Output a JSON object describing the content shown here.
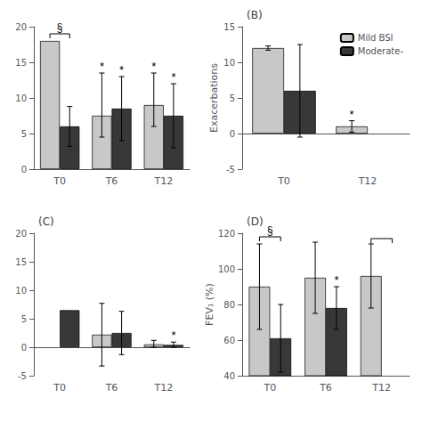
{
  "chart_data": [
    {
      "type": "bar",
      "categories": [
        "T0",
        "T6",
        "T12"
      ],
      "series": [
        {
          "name": "Mild BSI",
          "color": "#c8c8c8",
          "values": [
            18.0,
            7.5,
            9.0
          ],
          "errors_up": [
            null,
            6.0,
            4.5
          ],
          "errors_dn": [
            null,
            3.0,
            3.0
          ]
        },
        {
          "name": "Moderate-",
          "color": "#383838",
          "values": [
            6.0,
            8.5,
            7.5
          ],
          "errors_up": [
            2.8,
            4.5,
            4.5
          ],
          "errors_dn": [
            2.8,
            4.5,
            4.5
          ]
        }
      ],
      "ylim": [
        0,
        20
      ],
      "yticks": [
        0,
        5,
        10,
        15,
        20
      ],
      "grid": false,
      "annotations": [
        {
          "text": "*",
          "category": "T6",
          "series": "Mild BSI"
        },
        {
          "text": "*",
          "category": "T6",
          "series": "Moderate-"
        },
        {
          "text": "*",
          "category": "T12",
          "series": "Mild BSI"
        },
        {
          "text": "*",
          "category": "T12",
          "series": "Moderate-"
        }
      ],
      "brackets": [
        {
          "category": "T0",
          "y": 19.0,
          "text": "§"
        }
      ]
    },
    {
      "type": "bar",
      "title": "(B)",
      "ylabel": "Exacerbations",
      "categories": [
        "T0",
        "T12"
      ],
      "series": [
        {
          "name": "Mild BSI",
          "color": "#c8c8c8",
          "values": [
            12.0,
            1.0
          ],
          "errors_up": [
            0.3,
            0.8
          ],
          "errors_dn": [
            0.3,
            0.8
          ]
        },
        {
          "name": "Moderate-",
          "color": "#383838",
          "values": [
            6.0,
            null
          ],
          "errors_up": [
            6.5,
            null
          ],
          "errors_dn": [
            6.5,
            null
          ]
        }
      ],
      "ylim": [
        -5,
        15
      ],
      "yticks": [
        -5,
        0,
        5,
        10,
        15
      ],
      "grid": false,
      "legend": "upper right",
      "annotations": [
        {
          "text": "*",
          "category": "T12",
          "series": "Mild BSI"
        }
      ]
    },
    {
      "type": "bar",
      "title": "(C)",
      "categories": [
        "T0",
        "T6",
        "T12"
      ],
      "series": [
        {
          "name": "Mild BSI",
          "color": "#c8c8c8",
          "values": [
            null,
            2.2,
            0.5
          ],
          "errors_up": [
            null,
            5.5,
            0.7
          ],
          "errors_dn": [
            null,
            5.5,
            0.5
          ]
        },
        {
          "name": "Moderate-",
          "color": "#383838",
          "values": [
            6.5,
            2.5,
            0.4
          ],
          "errors_up": [
            null,
            3.8,
            0.5
          ],
          "errors_dn": [
            null,
            3.8,
            0.4
          ]
        }
      ],
      "ylim": [
        -5,
        20
      ],
      "yticks": [
        -5,
        0,
        5,
        10,
        15,
        20
      ],
      "grid": false,
      "annotations": [
        {
          "text": "*",
          "category": "T12",
          "series": "Moderate-"
        }
      ]
    },
    {
      "type": "bar",
      "title": "(D)",
      "ylabel": "FEV₁ (%)",
      "categories": [
        "T0",
        "T6",
        "T12"
      ],
      "series": [
        {
          "name": "Mild BSI",
          "color": "#c8c8c8",
          "values": [
            90,
            95,
            96
          ],
          "errors_up": [
            24,
            20,
            18
          ],
          "errors_dn": [
            24,
            20,
            18
          ]
        },
        {
          "name": "Moderate-",
          "color": "#383838",
          "values": [
            61,
            78,
            null
          ],
          "errors_up": [
            19,
            12,
            null
          ],
          "errors_dn": [
            19,
            12,
            null
          ]
        }
      ],
      "ylim": [
        40,
        120
      ],
      "yticks": [
        40,
        60,
        80,
        100,
        120
      ],
      "grid": false,
      "annotations": [
        {
          "text": "*",
          "category": "T6",
          "series": "Moderate-"
        }
      ],
      "brackets": [
        {
          "category": "T0",
          "y": 118,
          "text": "§"
        },
        {
          "category": "T12",
          "y": 117
        }
      ]
    }
  ]
}
